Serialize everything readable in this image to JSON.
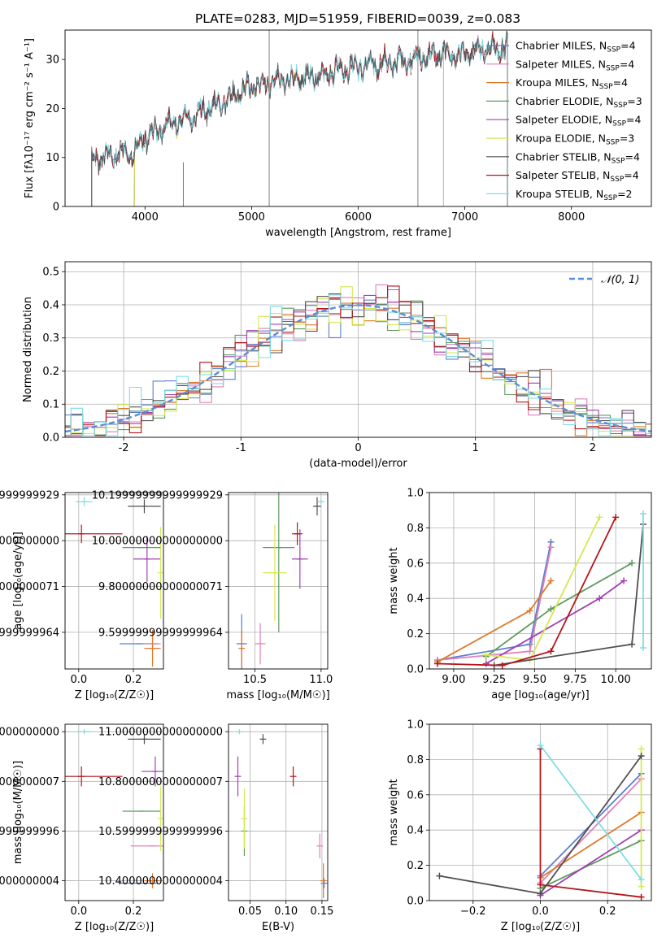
{
  "colors": {
    "Chabrier MILES": "#5b7fd0",
    "Salpeter MILES": "#e081b8",
    "Kroupa MILES": "#e07a2a",
    "Chabrier ELODIE": "#5f9a5f",
    "Salpeter ELODIE": "#a43fb4",
    "Kroupa ELODIE": "#d6e84f",
    "Chabrier STELIB": "#505050",
    "Salpeter STELIB": "#b3161c",
    "Kroupa STELIB": "#7fdde2",
    "normal": "#5b8dd6"
  },
  "chart_data": [
    {
      "id": "spectrum",
      "type": "line",
      "title": "PLATE=0283, MJD=51959, FIBERID=0039, z=0.083",
      "xlabel": "wavelength [Angstrom, rest frame]",
      "ylabel": "Flux [fλ10⁻¹⁷ erg cm⁻² s⁻¹ A⁻¹]",
      "xlim": [
        3250,
        8750
      ],
      "ylim": [
        0,
        36
      ],
      "xticks": [
        4000,
        5000,
        6000,
        7000,
        8000
      ],
      "yticks": [
        0,
        10,
        20,
        30
      ],
      "legend": [
        {
          "label": "Chabrier MILES, N",
          "sub": "SSP",
          "tail": "=4"
        },
        {
          "label": "Salpeter MILES, N",
          "sub": "SSP",
          "tail": "=4"
        },
        {
          "label": "Kroupa MILES, N",
          "sub": "SSP",
          "tail": "=4"
        },
        {
          "label": "Chabrier ELODIE, N",
          "sub": "SSP",
          "tail": "=3"
        },
        {
          "label": "Salpeter ELODIE, N",
          "sub": "SSP",
          "tail": "=4"
        },
        {
          "label": "Kroupa ELODIE, N",
          "sub": "SSP",
          "tail": "=3"
        },
        {
          "label": "Chabrier STELIB, N",
          "sub": "SSP",
          "tail": "=4"
        },
        {
          "label": "Salpeter STELIB, N",
          "sub": "SSP",
          "tail": "=4"
        },
        {
          "label": "Kroupa STELIB, N",
          "sub": "SSP",
          "tail": "=2"
        }
      ],
      "continuum": [
        [
          3500,
          9
        ],
        [
          3600,
          10
        ],
        [
          3700,
          10.5
        ],
        [
          3800,
          11
        ],
        [
          3900,
          11
        ],
        [
          4000,
          14
        ],
        [
          4200,
          16.5
        ],
        [
          4400,
          18
        ],
        [
          4600,
          20
        ],
        [
          4800,
          22
        ],
        [
          5000,
          24.5
        ],
        [
          5200,
          25.5
        ],
        [
          5400,
          26
        ],
        [
          5600,
          26.5
        ],
        [
          5800,
          28
        ],
        [
          6000,
          28.5
        ],
        [
          6200,
          29
        ],
        [
          6400,
          29.5
        ],
        [
          6600,
          30.5
        ],
        [
          6800,
          31
        ],
        [
          7000,
          31
        ],
        [
          7200,
          32
        ],
        [
          7400,
          32.5
        ]
      ],
      "models": [
        {
          "name": "Chabrier MILES",
          "x0": 3500,
          "x1": 7400
        },
        {
          "name": "Salpeter MILES",
          "x0": 3500,
          "x1": 7400
        },
        {
          "name": "Kroupa MILES",
          "x0": 3500,
          "x1": 7400
        },
        {
          "name": "Chabrier ELODIE",
          "x0": 3900,
          "x1": 6800
        },
        {
          "name": "Salpeter ELODIE",
          "x0": 3900,
          "x1": 6800
        },
        {
          "name": "Kroupa ELODIE",
          "x0": 3900,
          "x1": 6800
        },
        {
          "name": "Chabrier STELIB",
          "x0": 3500,
          "x1": 7400
        },
        {
          "name": "Salpeter STELIB",
          "x0": 3500,
          "x1": 7400
        },
        {
          "name": "Kroupa STELIB",
          "x0": 3500,
          "x1": 7400
        }
      ]
    },
    {
      "id": "residuals",
      "type": "line",
      "xlabel": "(data-model)/error",
      "ylabel": "Normed distribution",
      "xlim": [
        -2.5,
        2.5
      ],
      "ylim": [
        0,
        0.53
      ],
      "xticks": [
        -2,
        -1,
        0,
        1,
        2
      ],
      "yticks": [
        0.0,
        0.1,
        0.2,
        0.3,
        0.4,
        0.5
      ],
      "legend_label": "𝒩(0, 1)",
      "hist_bin": 0.1
    },
    {
      "id": "age_vs_Z",
      "type": "scatter",
      "xlabel": "Z [log₁₀(Z/Z☉)]",
      "ylabel": "age  [log₁₀(age/yr)]",
      "xlim": [
        -0.05,
        0.31
      ],
      "ylim": [
        9.44,
        10.21
      ],
      "xticks": [
        0.0,
        0.2
      ],
      "yticks": [
        9.6,
        9.8,
        10.0,
        10.2
      ],
      "points": [
        {
          "s": "Chabrier MILES",
          "x": 0.22,
          "y": 9.55,
          "xe": 0.07,
          "ye": 0.0
        },
        {
          "s": "Salpeter MILES",
          "x": 0.27,
          "y": 9.55,
          "xe": 0.03,
          "ye": 0.05
        },
        {
          "s": "Kroupa MILES",
          "x": 0.27,
          "y": 9.53,
          "xe": 0.03,
          "ye": 0.08
        },
        {
          "s": "Chabrier ELODIE",
          "x": 0.23,
          "y": 9.97,
          "xe": 0.07,
          "ye": 0.0
        },
        {
          "s": "Salpeter ELODIE",
          "x": 0.25,
          "y": 9.92,
          "xe": 0.05,
          "ye": 0.1
        },
        {
          "s": "Kroupa ELODIE",
          "x": 0.3,
          "y": 9.86,
          "xe": 0.0,
          "ye": 0.2
        },
        {
          "s": "Chabrier STELIB",
          "x": 0.24,
          "y": 10.15,
          "xe": 0.06,
          "ye": 0.03
        },
        {
          "s": "Salpeter STELIB",
          "x": 0.01,
          "y": 10.03,
          "xe": 0.15,
          "ye": 0.04
        },
        {
          "s": "Kroupa STELIB",
          "x": 0.02,
          "y": 10.17,
          "xe": 0.03,
          "ye": 0.02
        }
      ]
    },
    {
      "id": "age_vs_mass",
      "type": "scatter",
      "xlabel": "mass [log₁₀(M/M☉)]",
      "ylabel": "",
      "xlim": [
        10.3,
        11.05
      ],
      "ylim": [
        9.44,
        10.21
      ],
      "xticks": [
        10.5,
        11.0
      ],
      "yticks": [
        9.6,
        9.8,
        10.0,
        10.2
      ],
      "points": [
        {
          "s": "Chabrier MILES",
          "x": 10.4,
          "y": 9.55,
          "xe": 0.04,
          "ye": 0.13
        },
        {
          "s": "Salpeter MILES",
          "x": 10.54,
          "y": 9.55,
          "xe": 0.04,
          "ye": 0.09
        },
        {
          "s": "Kroupa MILES",
          "x": 10.4,
          "y": 9.53,
          "xe": 0.01,
          "ye": 0.08
        },
        {
          "s": "Chabrier ELODIE",
          "x": 10.68,
          "y": 9.97,
          "xe": 0.12,
          "ye": 0.37
        },
        {
          "s": "Salpeter ELODIE",
          "x": 10.84,
          "y": 9.92,
          "xe": 0.06,
          "ye": 0.13
        },
        {
          "s": "Kroupa ELODIE",
          "x": 10.65,
          "y": 9.86,
          "xe": 0.09,
          "ye": 0.21
        },
        {
          "s": "Chabrier STELIB",
          "x": 10.97,
          "y": 10.15,
          "xe": 0.03,
          "ye": 0.04
        },
        {
          "s": "Salpeter STELIB",
          "x": 10.82,
          "y": 10.03,
          "xe": 0.04,
          "ye": 0.05
        },
        {
          "s": "Kroupa STELIB",
          "x": 11.0,
          "y": 10.17,
          "xe": 0.01,
          "ye": 0.01
        }
      ]
    },
    {
      "id": "weight_vs_age",
      "type": "line",
      "xlabel": "age  [log₁₀(age/yr)]",
      "ylabel": "mass weight",
      "xlim": [
        8.85,
        10.22
      ],
      "ylim": [
        0,
        1
      ],
      "xticks": [
        9.0,
        9.25,
        9.5,
        9.75,
        10.0
      ],
      "yticks": [
        0.0,
        0.2,
        0.4,
        0.6,
        0.8,
        1.0
      ],
      "series": [
        {
          "s": "Chabrier MILES",
          "points": [
            [
              8.9,
              0.05
            ],
            [
              9.47,
              0.14
            ],
            [
              9.6,
              0.72
            ]
          ]
        },
        {
          "s": "Salpeter MILES",
          "points": [
            [
              8.9,
              0.05
            ],
            [
              9.47,
              0.1
            ],
            [
              9.6,
              0.69
            ]
          ]
        },
        {
          "s": "Kroupa MILES",
          "points": [
            [
              8.9,
              0.04
            ],
            [
              9.47,
              0.33
            ],
            [
              9.6,
              0.5
            ]
          ]
        },
        {
          "s": "Chabrier ELODIE",
          "points": [
            [
              9.2,
              0.07
            ],
            [
              9.6,
              0.34
            ],
            [
              10.1,
              0.6
            ]
          ]
        },
        {
          "s": "Salpeter ELODIE",
          "points": [
            [
              9.2,
              0.03
            ],
            [
              9.9,
              0.4
            ],
            [
              10.05,
              0.5
            ]
          ]
        },
        {
          "s": "Kroupa ELODIE",
          "points": [
            [
              9.2,
              0.08
            ],
            [
              9.47,
              0.05
            ],
            [
              9.9,
              0.86
            ]
          ]
        },
        {
          "s": "Chabrier STELIB",
          "points": [
            [
              9.25,
              0.02
            ],
            [
              10.1,
              0.14
            ],
            [
              10.17,
              0.82
            ]
          ]
        },
        {
          "s": "Salpeter STELIB",
          "points": [
            [
              8.9,
              0.03
            ],
            [
              9.3,
              0.02
            ],
            [
              9.6,
              0.1
            ],
            [
              10.0,
              0.86
            ]
          ]
        },
        {
          "s": "Kroupa STELIB",
          "points": [
            [
              10.17,
              0.88
            ],
            [
              10.17,
              0.12
            ]
          ]
        }
      ]
    },
    {
      "id": "mass_vs_Z",
      "type": "scatter",
      "xlabel": "Z [log₁₀(Z/Z☉)]",
      "ylabel": "mass [log₁₀(M/M☉)]",
      "xlim": [
        -0.05,
        0.31
      ],
      "ylim": [
        10.32,
        11.03
      ],
      "xticks": [
        0.0,
        0.2
      ],
      "yticks": [
        10.4,
        10.6,
        10.8,
        11.0
      ],
      "points": [
        {
          "s": "Chabrier MILES",
          "x": 0.22,
          "y": 10.39,
          "xe": 0.07,
          "ye": 0.0
        },
        {
          "s": "Salpeter MILES",
          "x": 0.27,
          "y": 10.54,
          "xe": 0.08,
          "ye": 0.0
        },
        {
          "s": "Kroupa MILES",
          "x": 0.27,
          "y": 10.4,
          "xe": 0.03,
          "ye": 0.03
        },
        {
          "s": "Chabrier ELODIE",
          "x": 0.23,
          "y": 10.68,
          "xe": 0.07,
          "ye": 0.0
        },
        {
          "s": "Salpeter ELODIE",
          "x": 0.28,
          "y": 10.84,
          "xe": 0.05,
          "ye": 0.06
        },
        {
          "s": "Kroupa ELODIE",
          "x": 0.3,
          "y": 10.65,
          "xe": 0.0,
          "ye": 0.13
        },
        {
          "s": "Chabrier STELIB",
          "x": 0.24,
          "y": 10.97,
          "xe": 0.06,
          "ye": 0.02
        },
        {
          "s": "Salpeter STELIB",
          "x": 0.01,
          "y": 10.82,
          "xe": 0.15,
          "ye": 0.04
        },
        {
          "s": "Kroupa STELIB",
          "x": 0.02,
          "y": 11.0,
          "xe": 0.03,
          "ye": 0.01
        }
      ]
    },
    {
      "id": "mass_vs_ebv",
      "type": "scatter",
      "xlabel": "E(B-V)",
      "ylabel": "",
      "xlim": [
        0.02,
        0.158
      ],
      "ylim": [
        10.32,
        11.03
      ],
      "xticks": [
        0.05,
        0.1,
        0.15
      ],
      "yticks": [
        10.4,
        10.6,
        10.8,
        11.0
      ],
      "points": [
        {
          "s": "Chabrier MILES",
          "x": 0.153,
          "y": 10.39,
          "xe": 0.0,
          "ye": 0.02
        },
        {
          "s": "Salpeter MILES",
          "x": 0.147,
          "y": 10.54,
          "xe": 0.0,
          "ye": 0.05
        },
        {
          "s": "Kroupa MILES",
          "x": 0.152,
          "y": 10.4,
          "xe": 0.0,
          "ye": 0.07
        },
        {
          "s": "Chabrier ELODIE",
          "x": 0.042,
          "y": 10.6,
          "xe": 0.0,
          "ye": 0.1
        },
        {
          "s": "Salpeter ELODIE",
          "x": 0.033,
          "y": 10.82,
          "xe": 0.0,
          "ye": 0.08
        },
        {
          "s": "Kroupa ELODIE",
          "x": 0.042,
          "y": 10.65,
          "xe": 0.0,
          "ye": 0.12
        },
        {
          "s": "Chabrier STELIB",
          "x": 0.068,
          "y": 10.97,
          "xe": 0.0,
          "ye": 0.02
        },
        {
          "s": "Salpeter STELIB",
          "x": 0.11,
          "y": 10.82,
          "xe": 0.0,
          "ye": 0.04
        },
        {
          "s": "Kroupa STELIB",
          "x": 0.035,
          "y": 11.0,
          "xe": 0.0,
          "ye": 0.01
        }
      ]
    },
    {
      "id": "weight_vs_Z",
      "type": "line",
      "xlabel": "Z [log₁₀(Z/Z☉)]",
      "ylabel": "mass weight",
      "xlim": [
        -0.33,
        0.33
      ],
      "ylim": [
        0,
        1
      ],
      "xticks": [
        -0.2,
        0.0,
        0.2
      ],
      "yticks": [
        0.0,
        0.2,
        0.4,
        0.6,
        0.8,
        1.0
      ],
      "series": [
        {
          "s": "Chabrier MILES",
          "points": [
            [
              0.0,
              0.14
            ],
            [
              0.3,
              0.72
            ]
          ]
        },
        {
          "s": "Salpeter MILES",
          "points": [
            [
              0.0,
              0.1
            ],
            [
              0.3,
              0.69
            ]
          ]
        },
        {
          "s": "Kroupa MILES",
          "points": [
            [
              0.0,
              0.13
            ],
            [
              0.3,
              0.5
            ]
          ]
        },
        {
          "s": "Chabrier ELODIE",
          "points": [
            [
              0.0,
              0.07
            ],
            [
              0.3,
              0.34
            ]
          ]
        },
        {
          "s": "Salpeter ELODIE",
          "points": [
            [
              0.0,
              0.03
            ],
            [
              0.3,
              0.4
            ]
          ]
        },
        {
          "s": "Kroupa ELODIE",
          "points": [
            [
              0.3,
              0.86
            ],
            [
              0.3,
              0.08
            ]
          ]
        },
        {
          "s": "Chabrier STELIB",
          "points": [
            [
              -0.3,
              0.14
            ],
            [
              0.0,
              0.04
            ],
            [
              0.3,
              0.82
            ]
          ]
        },
        {
          "s": "Salpeter STELIB",
          "points": [
            [
              0.0,
              0.86
            ],
            [
              0.0,
              0.09
            ],
            [
              0.3,
              0.02
            ]
          ]
        },
        {
          "s": "Kroupa STELIB",
          "points": [
            [
              0.0,
              0.88
            ],
            [
              0.3,
              0.12
            ]
          ]
        }
      ]
    }
  ]
}
